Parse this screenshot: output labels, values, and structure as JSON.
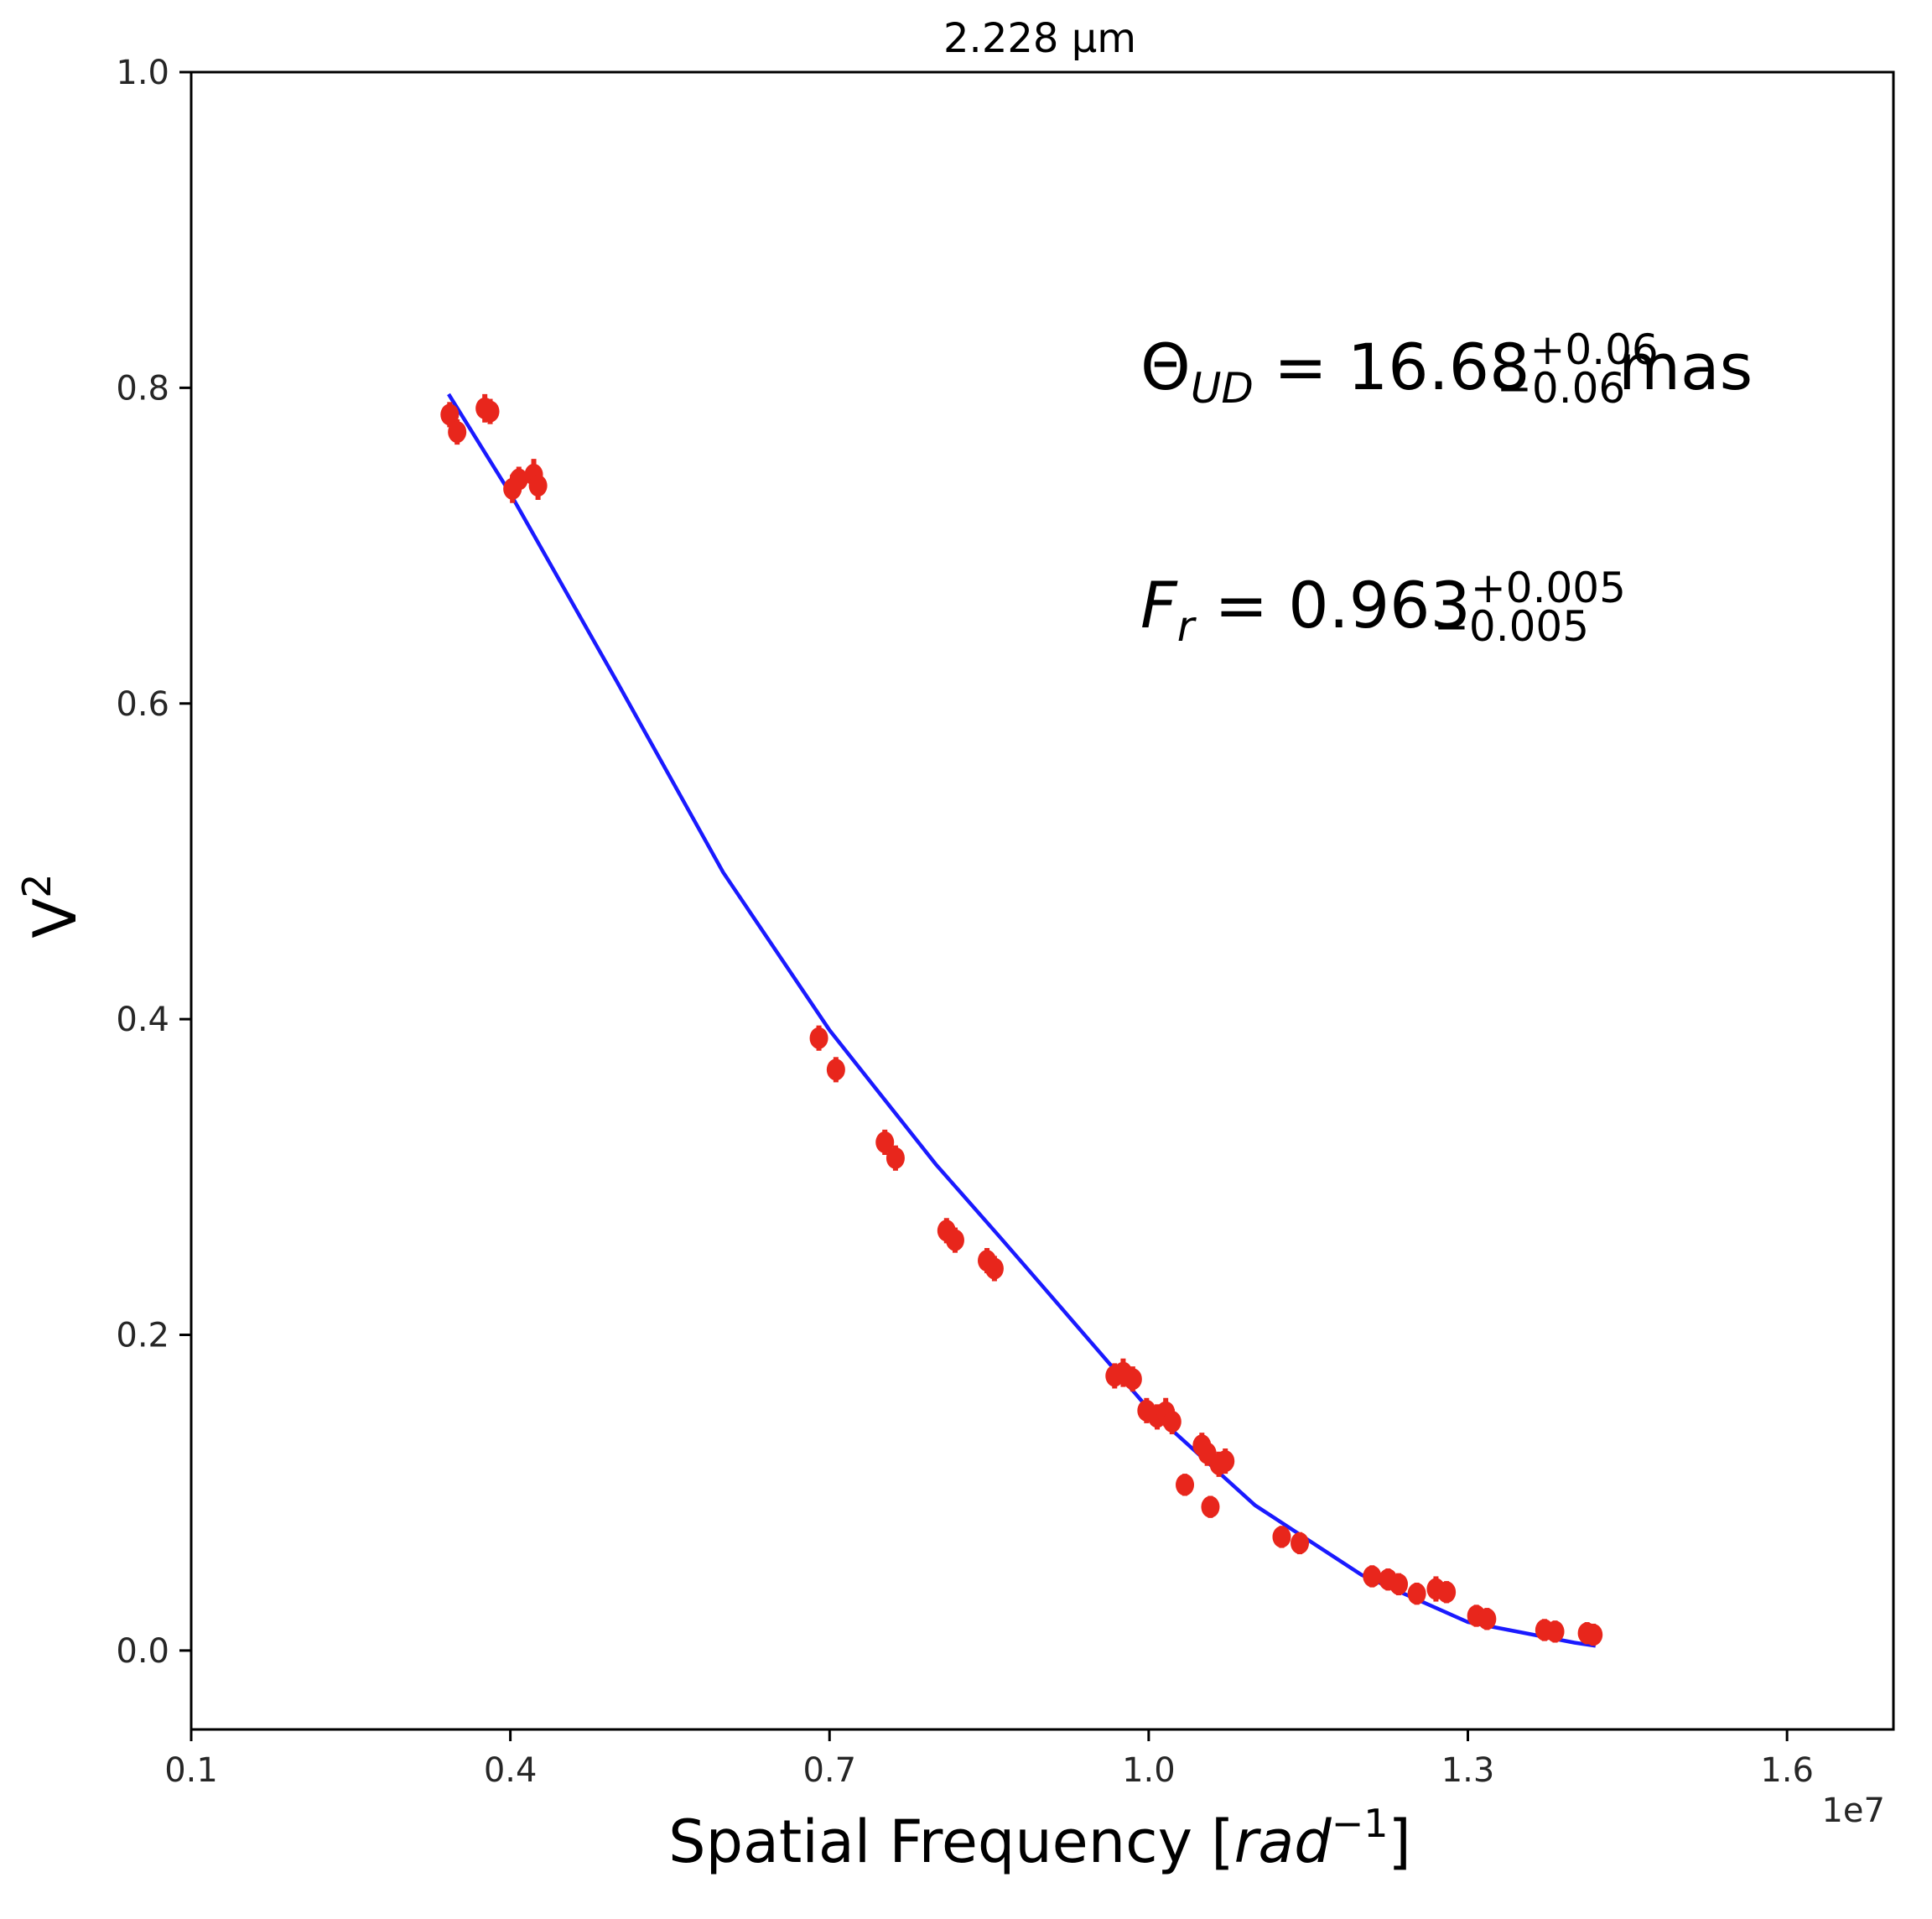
{
  "chart_data": {
    "type": "scatter",
    "title": "2.228 μm",
    "xlabel": "Spatial Frequency [rad⁻¹]",
    "xlabel_plain": "Spatial Frequency [",
    "xlabel_math": "rad",
    "xlabel_sup": "−1",
    "xlabel_close": "]",
    "ylabel": "V²",
    "ylabel_base": "V",
    "ylabel_sup": "2",
    "x_offset_label": "1e7",
    "xlim": [
      0.1,
      1.7
    ],
    "ylim": [
      -0.05,
      1.0
    ],
    "x_ticks": [
      0.1,
      0.4,
      0.7,
      1.0,
      1.3,
      1.6
    ],
    "x_tick_labels": [
      "0.1",
      "0.4",
      "0.7",
      "1.0",
      "1.3",
      "1.6"
    ],
    "y_ticks": [
      0.0,
      0.2,
      0.4,
      0.6,
      0.8,
      1.0
    ],
    "y_tick_labels": [
      "0.0",
      "0.2",
      "0.4",
      "0.6",
      "0.8",
      "1.0"
    ],
    "grid": false,
    "colors": {
      "data": "#e8261c",
      "model": "#1a1aff",
      "axes": "#000000"
    },
    "series": [
      {
        "name": "",
        "kind": "scatter-errorbar",
        "points": [
          {
            "x": 0.343,
            "y": 0.783,
            "err": 0.008
          },
          {
            "x": 0.35,
            "y": 0.772,
            "err": 0.008
          },
          {
            "x": 0.376,
            "y": 0.787,
            "err": 0.009
          },
          {
            "x": 0.381,
            "y": 0.785,
            "err": 0.008
          },
          {
            "x": 0.402,
            "y": 0.736,
            "err": 0.009
          },
          {
            "x": 0.408,
            "y": 0.742,
            "err": 0.008
          },
          {
            "x": 0.422,
            "y": 0.745,
            "err": 0.01
          },
          {
            "x": 0.426,
            "y": 0.738,
            "err": 0.009
          },
          {
            "x": 0.69,
            "y": 0.388,
            "err": 0.008
          },
          {
            "x": 0.706,
            "y": 0.368,
            "err": 0.008
          },
          {
            "x": 0.752,
            "y": 0.322,
            "err": 0.008
          },
          {
            "x": 0.762,
            "y": 0.312,
            "err": 0.008
          },
          {
            "x": 0.81,
            "y": 0.266,
            "err": 0.008
          },
          {
            "x": 0.818,
            "y": 0.26,
            "err": 0.008
          },
          {
            "x": 0.848,
            "y": 0.247,
            "err": 0.008
          },
          {
            "x": 0.855,
            "y": 0.242,
            "err": 0.008
          },
          {
            "x": 0.968,
            "y": 0.174,
            "err": 0.008
          },
          {
            "x": 0.976,
            "y": 0.176,
            "err": 0.009
          },
          {
            "x": 0.985,
            "y": 0.172,
            "err": 0.008
          },
          {
            "x": 0.998,
            "y": 0.152,
            "err": 0.008
          },
          {
            "x": 1.008,
            "y": 0.148,
            "err": 0.008
          },
          {
            "x": 1.016,
            "y": 0.151,
            "err": 0.009
          },
          {
            "x": 1.022,
            "y": 0.145,
            "err": 0.008
          },
          {
            "x": 1.034,
            "y": 0.105,
            "err": 0.007
          },
          {
            "x": 1.05,
            "y": 0.13,
            "err": 0.008
          },
          {
            "x": 1.055,
            "y": 0.125,
            "err": 0.008
          },
          {
            "x": 1.058,
            "y": 0.091,
            "err": 0.007
          },
          {
            "x": 1.066,
            "y": 0.118,
            "err": 0.008
          },
          {
            "x": 1.072,
            "y": 0.12,
            "err": 0.008
          },
          {
            "x": 1.125,
            "y": 0.072,
            "err": 0.007
          },
          {
            "x": 1.142,
            "y": 0.068,
            "err": 0.007
          },
          {
            "x": 1.21,
            "y": 0.047,
            "err": 0.007
          },
          {
            "x": 1.225,
            "y": 0.045,
            "err": 0.007
          },
          {
            "x": 1.235,
            "y": 0.042,
            "err": 0.007
          },
          {
            "x": 1.252,
            "y": 0.036,
            "err": 0.007
          },
          {
            "x": 1.27,
            "y": 0.039,
            "err": 0.008
          },
          {
            "x": 1.28,
            "y": 0.037,
            "err": 0.007
          },
          {
            "x": 1.308,
            "y": 0.022,
            "err": 0.007
          },
          {
            "x": 1.318,
            "y": 0.02,
            "err": 0.007
          },
          {
            "x": 1.372,
            "y": 0.013,
            "err": 0.007
          },
          {
            "x": 1.382,
            "y": 0.012,
            "err": 0.007
          },
          {
            "x": 1.412,
            "y": 0.011,
            "err": 0.007
          },
          {
            "x": 1.418,
            "y": 0.01,
            "err": 0.007
          }
        ]
      },
      {
        "name": "",
        "kind": "line",
        "x": [
          0.342,
          0.4,
          0.5,
          0.6,
          0.7,
          0.8,
          0.86,
          0.9,
          1.0,
          1.1,
          1.2,
          1.3,
          1.4,
          1.42
        ],
        "y": [
          0.796,
          0.733,
          0.614,
          0.493,
          0.393,
          0.308,
          0.262,
          0.231,
          0.153,
          0.092,
          0.048,
          0.018,
          0.005,
          0.003
        ]
      }
    ],
    "annotations": [
      {
        "prefix": "Θ",
        "sub": "UD",
        "eq": " = 16.68",
        "sup": "+0.06",
        "subscript": "−0.06",
        "suffix": " mas"
      },
      {
        "prefix": "F",
        "sub": "r",
        "eq": " = 0.963",
        "sup": "+0.005",
        "subscript": "−0.005",
        "suffix": ""
      }
    ]
  }
}
